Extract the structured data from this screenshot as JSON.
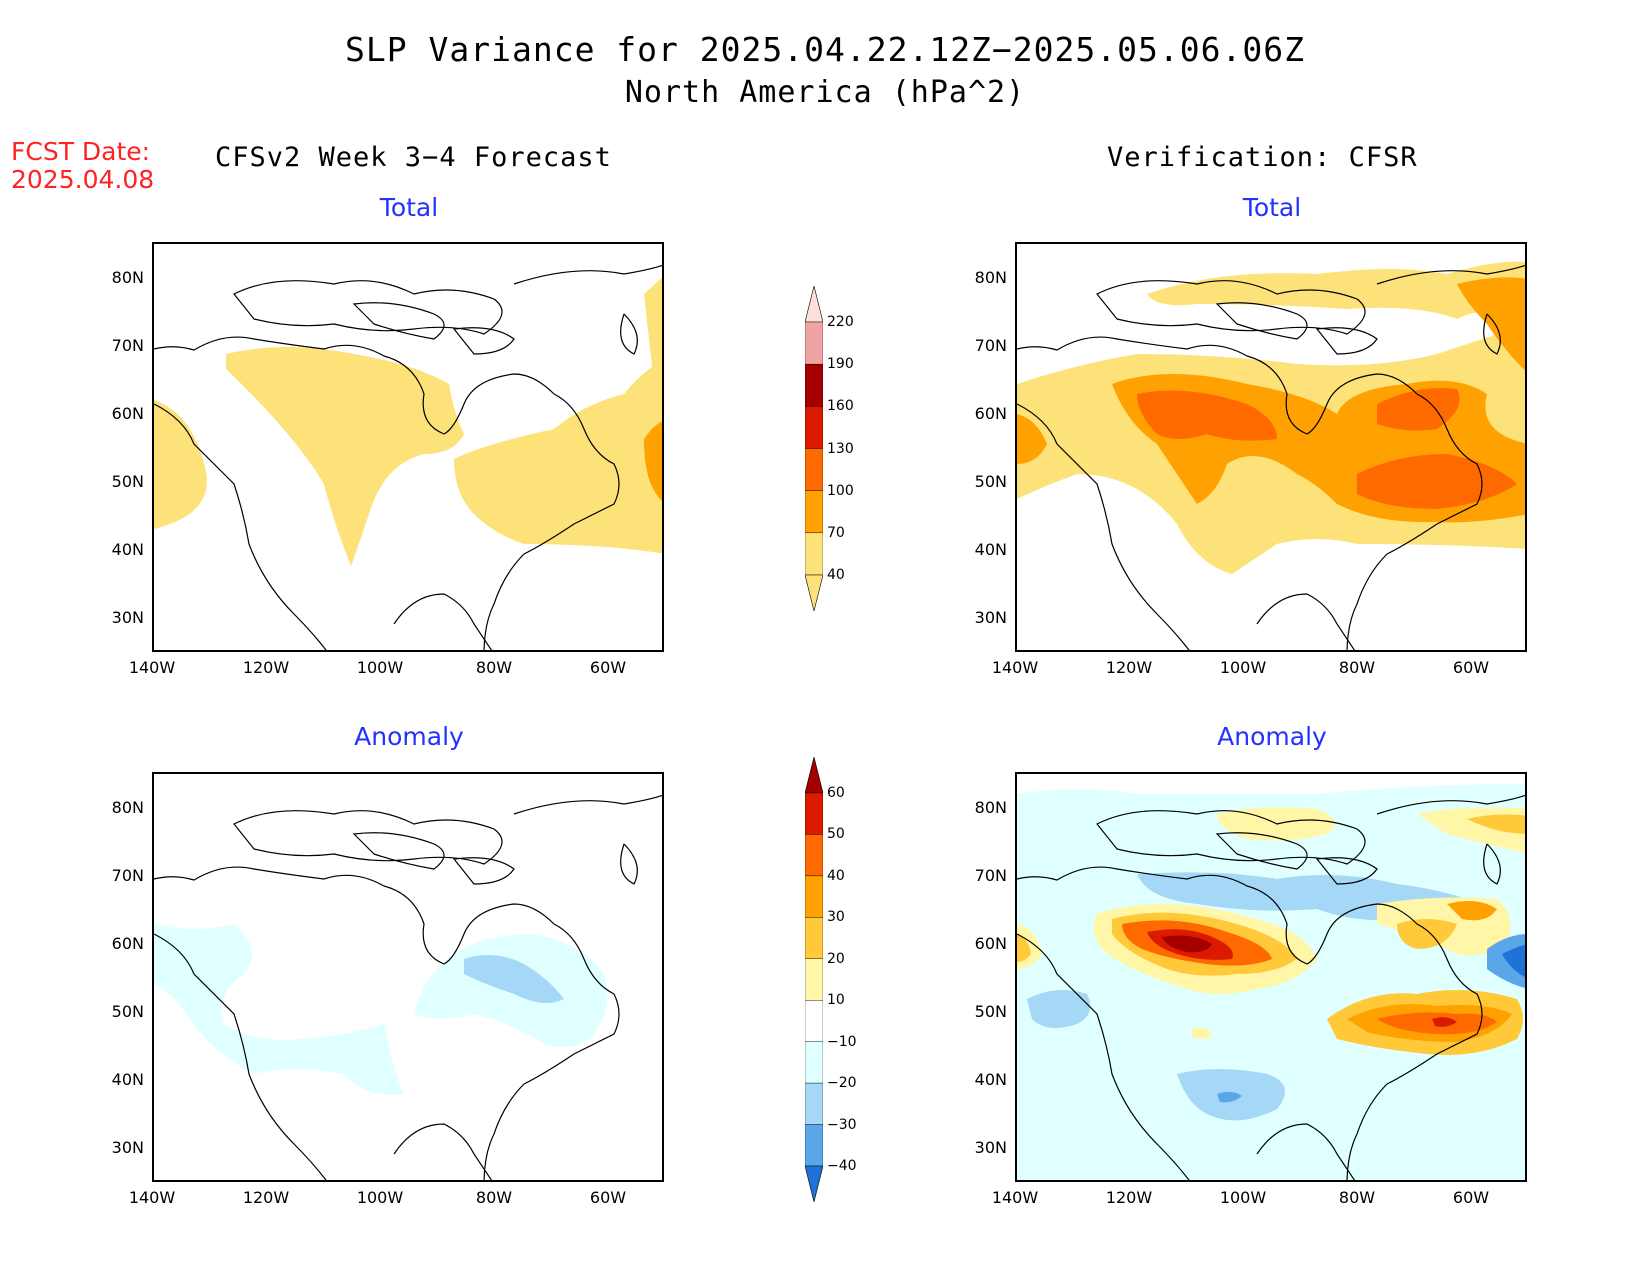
{
  "header": {
    "title": "SLP Variance for 2025.04.22.12Z−2025.05.06.06Z",
    "subtitle": "North America (hPa^2)",
    "fcst_label": "FCST Date:",
    "fcst_date": "2025.04.08"
  },
  "columns": {
    "left": "CFSv2 Week 3−4 Forecast",
    "right": "Verification: CFSR"
  },
  "panels": {
    "total": "Total",
    "anomaly": "Anomaly"
  },
  "axes": {
    "lat_labels": [
      "80N",
      "70N",
      "60N",
      "50N",
      "40N",
      "30N"
    ],
    "lon_labels": [
      "140W",
      "120W",
      "100W",
      "80W",
      "60W"
    ]
  },
  "colorbar_total": {
    "levels": [
      "220",
      "190",
      "160",
      "130",
      "100",
      "70",
      "40"
    ],
    "colors": [
      "#fde0dc",
      "#f0a3a3",
      "#a50000",
      "#dc1a00",
      "#ff6a00",
      "#ffa100",
      "#fde27a"
    ]
  },
  "colorbar_anomaly": {
    "levels": [
      "60",
      "50",
      "40",
      "30",
      "20",
      "10",
      "−10",
      "−20",
      "−30",
      "−40"
    ],
    "colors": [
      "#a50000",
      "#dc1a00",
      "#ff6a00",
      "#ffa100",
      "#ffc93a",
      "#fff6a8",
      "#ffffff",
      "#e0ffff",
      "#a5d8f7",
      "#5aa6e8",
      "#1f73d6"
    ]
  }
}
